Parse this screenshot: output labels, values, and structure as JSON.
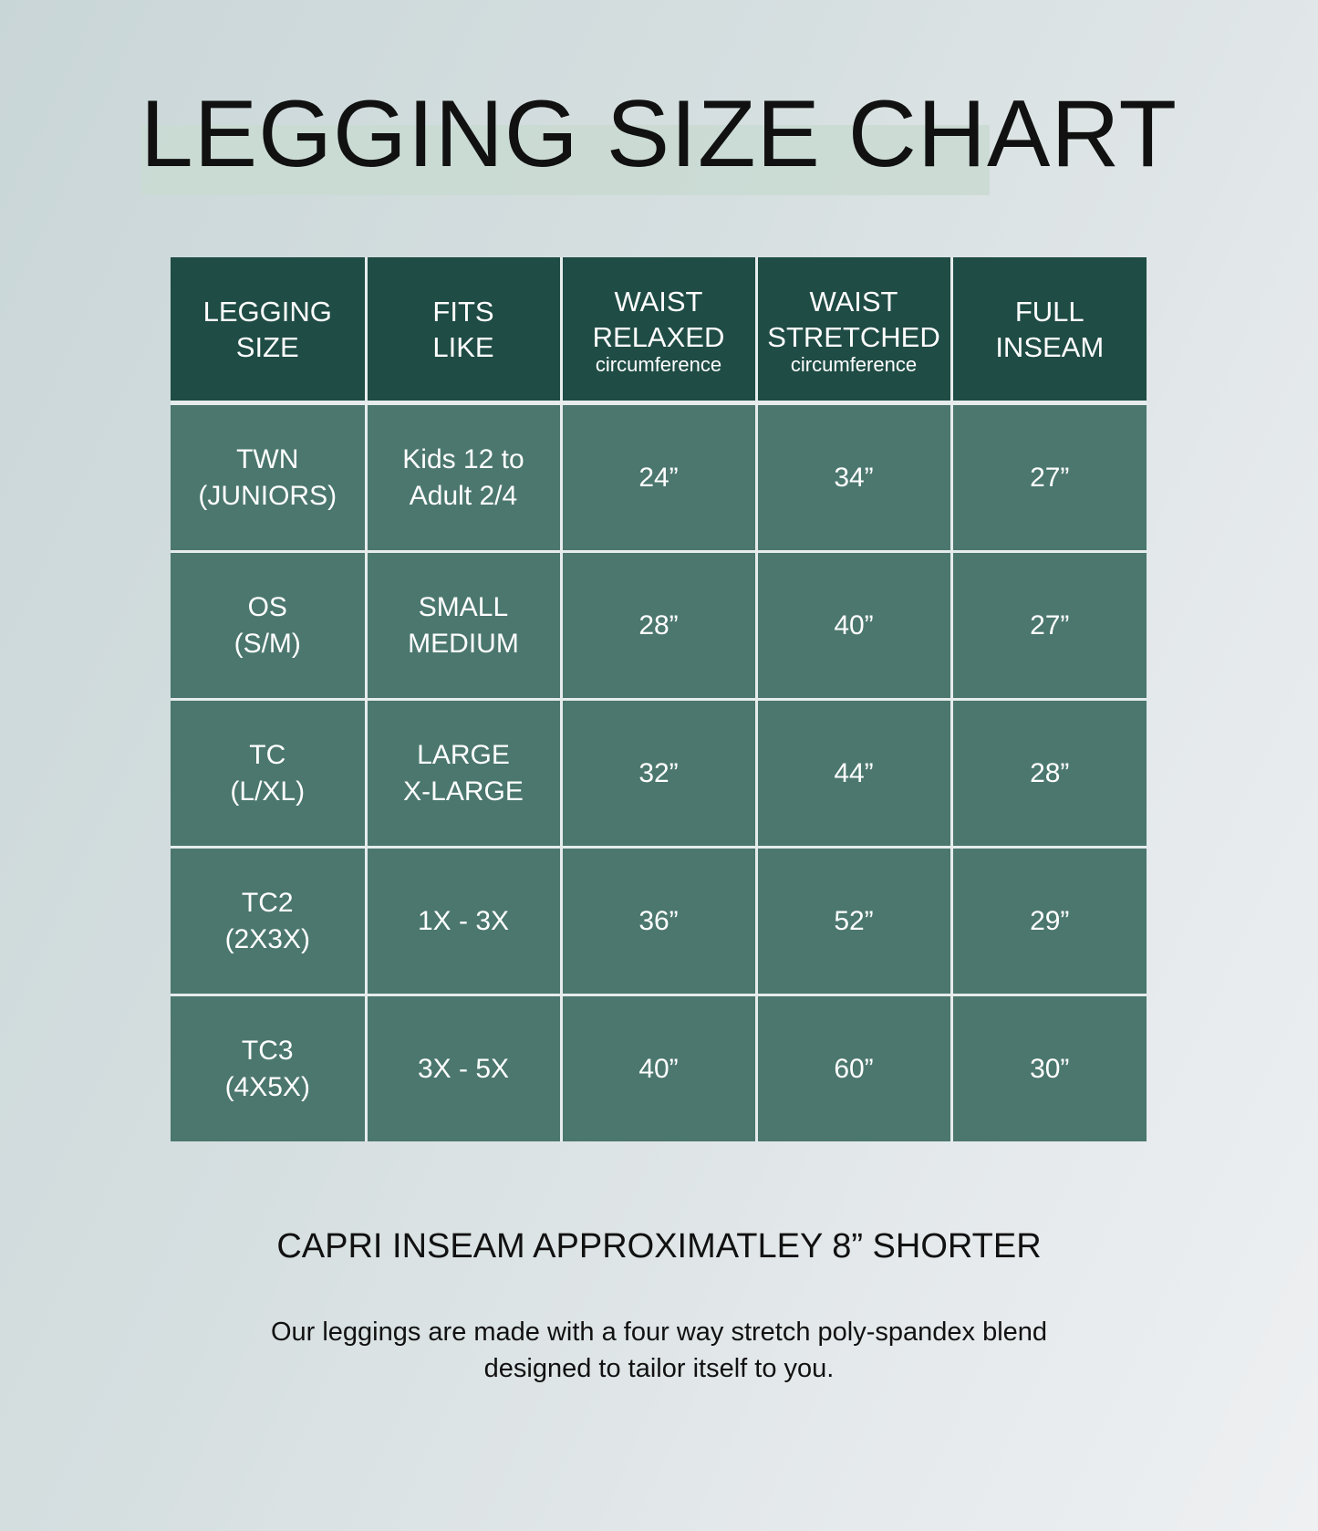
{
  "title": "LEGGING SIZE CHART",
  "headers": [
    {
      "line1": "LEGGING",
      "line2": "SIZE",
      "sub": ""
    },
    {
      "line1": "FITS",
      "line2": "LIKE",
      "sub": ""
    },
    {
      "line1": "WAIST",
      "line2": "RELAXED",
      "sub": "circumference"
    },
    {
      "line1": "WAIST",
      "line2": "STRETCHED",
      "sub": "circumference"
    },
    {
      "line1": "FULL",
      "line2": "INSEAM",
      "sub": ""
    }
  ],
  "rows": [
    {
      "size": [
        "TWN",
        "(JUNIORS)"
      ],
      "fits": [
        "Kids 12 to",
        "Adult 2/4"
      ],
      "relaxed": "24”",
      "stretched": "34”",
      "inseam": "27”"
    },
    {
      "size": [
        "OS",
        "(S/M)"
      ],
      "fits": [
        "SMALL",
        "MEDIUM"
      ],
      "relaxed": "28”",
      "stretched": "40”",
      "inseam": "27”"
    },
    {
      "size": [
        "TC",
        "(L/XL)"
      ],
      "fits": [
        "LARGE",
        "X-LARGE"
      ],
      "relaxed": "32”",
      "stretched": "44”",
      "inseam": "28”"
    },
    {
      "size": [
        "TC2",
        "(2X3X)"
      ],
      "fits": [
        "1X - 3X",
        ""
      ],
      "relaxed": "36”",
      "stretched": "52”",
      "inseam": "29”"
    },
    {
      "size": [
        "TC3",
        "(4X5X)"
      ],
      "fits": [
        "3X - 5X",
        ""
      ],
      "relaxed": "40”",
      "stretched": "60”",
      "inseam": "30”"
    }
  ],
  "note": "CAPRI INSEAM APPROXIMATLEY 8” SHORTER",
  "description": [
    "Our leggings are made with a four way stretch poly-spandex blend",
    "designed to tailor itself to you."
  ],
  "colors": {
    "header": "#1f4c45",
    "cell": "#4b776e",
    "highlight": "#c9dad2"
  }
}
